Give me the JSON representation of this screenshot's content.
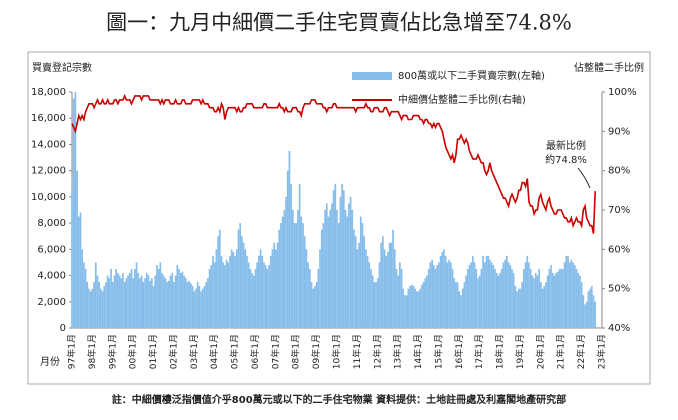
{
  "chart_data": {
    "type": "bar-line",
    "title": "圖一：九月中細價二手住宅買賣佔比急增至74.8%",
    "y_label": "買賣登記宗數",
    "y2_label": "佔整體二手比例",
    "x_label": "月份",
    "annotations": [
      "最新比例",
      "約74.8%"
    ],
    "footnote": "註：中細價樓泛指價值介乎800萬元或以下的二手住宅物業  資料提供：土地註冊處及利嘉閣地產研究部",
    "ylim": [
      0,
      18000
    ],
    "yticks": [
      0,
      {
        "value": 2000,
        "label": "2,000"
      },
      {
        "value": 4000,
        "label": "4,000"
      },
      {
        "value": 6000,
        "label": "6,000"
      },
      {
        "value": 8000,
        "label": "8,000"
      },
      {
        "value": 10000,
        "label": "10,000"
      },
      {
        "value": 12000,
        "label": "12,000"
      },
      {
        "value": 14000,
        "label": "14,000"
      },
      {
        "value": 16000,
        "label": "16,000"
      },
      {
        "value": 18000,
        "label": "18,000"
      }
    ],
    "y2lim": [
      40,
      100
    ],
    "y2ticks": [
      {
        "value": 40,
        "label": "40%"
      },
      {
        "value": 50,
        "label": "50%"
      },
      {
        "value": 60,
        "label": "60%"
      },
      {
        "value": 70,
        "label": "70%"
      },
      {
        "value": 80,
        "label": "80%"
      },
      {
        "value": 90,
        "label": "90%"
      },
      {
        "value": 100,
        "label": "100%"
      }
    ],
    "categories": [
      "97年1月",
      null,
      null,
      null,
      null,
      null,
      null,
      null,
      null,
      null,
      null,
      null,
      "98年1月",
      null,
      null,
      null,
      null,
      null,
      null,
      null,
      null,
      null,
      null,
      null,
      "99年1月",
      null,
      null,
      null,
      null,
      null,
      null,
      null,
      null,
      null,
      null,
      null,
      "00年1月",
      null,
      null,
      null,
      null,
      null,
      null,
      null,
      null,
      null,
      null,
      null,
      "01年1月",
      null,
      null,
      null,
      null,
      null,
      null,
      null,
      null,
      null,
      null,
      null,
      "02年1月",
      null,
      null,
      null,
      null,
      null,
      null,
      null,
      null,
      null,
      null,
      null,
      "03年1月",
      null,
      null,
      null,
      null,
      null,
      null,
      null,
      null,
      null,
      null,
      null,
      "04年1月",
      null,
      null,
      null,
      null,
      null,
      null,
      null,
      null,
      null,
      null,
      null,
      "05年1月",
      null,
      null,
      null,
      null,
      null,
      null,
      null,
      null,
      null,
      null,
      null,
      "06年1月",
      null,
      null,
      null,
      null,
      null,
      null,
      null,
      null,
      null,
      null,
      null,
      "07年1月",
      null,
      null,
      null,
      null,
      null,
      null,
      null,
      null,
      null,
      null,
      null,
      "08年1月",
      null,
      null,
      null,
      null,
      null,
      null,
      null,
      null,
      null,
      null,
      null,
      "09年1月",
      null,
      null,
      null,
      null,
      null,
      null,
      null,
      null,
      null,
      null,
      null,
      "10年1月",
      null,
      null,
      null,
      null,
      null,
      null,
      null,
      null,
      null,
      null,
      null,
      "11年1月",
      null,
      null,
      null,
      null,
      null,
      null,
      null,
      null,
      null,
      null,
      null,
      "12年1月",
      null,
      null,
      null,
      null,
      null,
      null,
      null,
      null,
      null,
      null,
      null,
      "13年1月",
      null,
      null,
      null,
      null,
      null,
      null,
      null,
      null,
      null,
      null,
      null,
      "14年1月",
      null,
      null,
      null,
      null,
      null,
      null,
      null,
      null,
      null,
      null,
      null,
      "15年1月",
      null,
      null,
      null,
      null,
      null,
      null,
      null,
      null,
      null,
      null,
      null,
      "16年1月",
      null,
      null,
      null,
      null,
      null,
      null,
      null,
      null,
      null,
      null,
      null,
      "17年1月",
      null,
      null,
      null,
      null,
      null,
      null,
      null,
      null,
      null,
      null,
      null,
      "18年1月",
      null,
      null,
      null,
      null,
      null,
      null,
      null,
      null,
      null,
      null,
      null,
      "19年1月",
      null,
      null,
      null,
      null,
      null,
      null,
      null,
      null,
      null,
      null,
      null,
      "20年1月",
      null,
      null,
      null,
      null,
      null,
      null,
      null,
      null,
      null,
      null,
      null,
      "21年1月",
      null,
      null,
      null,
      null,
      null,
      null,
      null,
      null,
      null,
      null,
      null,
      "22年1月",
      null,
      null,
      null,
      null,
      null,
      null,
      null,
      null,
      null,
      null,
      null,
      "23年1月"
    ],
    "series": [
      {
        "name": "800萬或以下二手買賣宗數(左軸)",
        "kind": "bar",
        "color": "#86bdea",
        "values": [
          10500,
          17500,
          18000,
          12000,
          8500,
          8800,
          6000,
          5000,
          4500,
          3500,
          3000,
          2800,
          3000,
          3500,
          5000,
          4000,
          3500,
          3000,
          2800,
          3200,
          3500,
          4000,
          3800,
          4500,
          3500,
          4000,
          4500,
          4200,
          4000,
          3800,
          4200,
          3500,
          3800,
          4000,
          4200,
          4500,
          3800,
          4500,
          5000,
          4200,
          3800,
          4000,
          3500,
          3800,
          4200,
          4000,
          3600,
          3800,
          3200,
          4000,
          4800,
          4500,
          5000,
          4200,
          4000,
          3800,
          3500,
          3600,
          4000,
          4200,
          3500,
          4000,
          4800,
          4500,
          4200,
          4300,
          4000,
          3800,
          3500,
          3600,
          3400,
          3200,
          2800,
          3000,
          3500,
          3200,
          2800,
          3000,
          3200,
          3500,
          3800,
          4500,
          4800,
          5500,
          5000,
          6000,
          7000,
          7500,
          5500,
          5000,
          4800,
          5200,
          5000,
          5500,
          6000,
          5800,
          5500,
          6000,
          7500,
          8000,
          7000,
          6500,
          6000,
          5500,
          5000,
          4500,
          4200,
          4000,
          4500,
          5000,
          5500,
          6000,
          5500,
          5000,
          4800,
          4500,
          4800,
          5500,
          6000,
          6500,
          6000,
          6500,
          7500,
          8000,
          8500,
          9000,
          10000,
          12000,
          13500,
          11000,
          9000,
          8000,
          8000,
          9000,
          11000,
          8500,
          8000,
          7000,
          6000,
          5000,
          4500,
          3500,
          3000,
          3200,
          3500,
          4500,
          6000,
          7500,
          8000,
          9000,
          9500,
          8500,
          9000,
          9500,
          10500,
          11000,
          9000,
          8000,
          10000,
          11000,
          10500,
          9000,
          8500,
          9500,
          10000,
          9000,
          7500,
          7000,
          6000,
          6500,
          8500,
          8000,
          7000,
          6000,
          5500,
          5000,
          4500,
          4000,
          3500,
          3500,
          3800,
          5000,
          6500,
          7000,
          6000,
          5500,
          5800,
          6500,
          6500,
          7500,
          6000,
          4500,
          4000,
          5000,
          4500,
          3000,
          2500,
          2500,
          3000,
          3200,
          3300,
          3200,
          3000,
          2800,
          2800,
          3000,
          3300,
          3500,
          3800,
          4000,
          4500,
          5000,
          5200,
          4800,
          4500,
          4800,
          5000,
          5500,
          5800,
          6000,
          5500,
          5000,
          5200,
          5000,
          4500,
          3800,
          3500,
          3500,
          2800,
          2500,
          3000,
          3500,
          4000,
          4500,
          4800,
          5000,
          5500,
          5000,
          4500,
          3800,
          4000,
          4500,
          5500,
          5000,
          5500,
          5500,
          5200,
          5000,
          4800,
          4500,
          4200,
          4000,
          4200,
          4500,
          5000,
          5200,
          5500,
          5000,
          4800,
          4500,
          4200,
          3200,
          2800,
          3000,
          3000,
          3500,
          4500,
          5000,
          5500,
          5000,
          4500,
          4000,
          3800,
          4200,
          4000,
          4500,
          3500,
          3000,
          3200,
          3500,
          4000,
          4500,
          4800,
          4200,
          4000,
          4200,
          4300,
          4500,
          4500,
          4500,
          5000,
          5500,
          5500,
          5000,
          5200,
          5000,
          4800,
          4500,
          4200,
          4000,
          3500,
          2500,
          1800,
          2000,
          2800,
          3000,
          3200,
          2500,
          2000,
          null,
          null,
          null,
          null
        ]
      },
      {
        "name": "中細價佔整體二手比例(右軸)",
        "kind": "line",
        "axis": "y2",
        "color": "#cc0000",
        "values": [
          92,
          91,
          90,
          92,
          94,
          93,
          94,
          93,
          95,
          96,
          97,
          97,
          97,
          96,
          97,
          98,
          97,
          97,
          98,
          97,
          97,
          98,
          97,
          97,
          97,
          98,
          98,
          97,
          98,
          98,
          98,
          99,
          98,
          98,
          98,
          97,
          98,
          99,
          99,
          99,
          99,
          98,
          99,
          99,
          99,
          99,
          98,
          98,
          98,
          98,
          98,
          98,
          97,
          98,
          97,
          98,
          98,
          98,
          97,
          97,
          97,
          98,
          97,
          97,
          97,
          98,
          98,
          97,
          97,
          97,
          97,
          98,
          98,
          98,
          98,
          98,
          97,
          98,
          97,
          97,
          97,
          96,
          96,
          96,
          95,
          95,
          96,
          95,
          97,
          96,
          93,
          95,
          96,
          96,
          96,
          96,
          96,
          95,
          96,
          95,
          95,
          96,
          96,
          97,
          97,
          97,
          97,
          96,
          96,
          96,
          96,
          96,
          96,
          97,
          97,
          96,
          96,
          96,
          96,
          96,
          96,
          96,
          97,
          96,
          96,
          95,
          96,
          95,
          95,
          95,
          96,
          96,
          96,
          95,
          95,
          94,
          96,
          97,
          97,
          97,
          97,
          98,
          98,
          98,
          97,
          97,
          97,
          97,
          96,
          96,
          95,
          96,
          96,
          96,
          97,
          97,
          96,
          96,
          96,
          96,
          96,
          96,
          96,
          96,
          96,
          96,
          96,
          95,
          96,
          96,
          96,
          96,
          96,
          97,
          96,
          96,
          95,
          95,
          96,
          96,
          96,
          95,
          95,
          95,
          96,
          96,
          95,
          94,
          95,
          95,
          95,
          95,
          95,
          94,
          93,
          94,
          94,
          94,
          93,
          93,
          93,
          94,
          94,
          94,
          94,
          93,
          93,
          92,
          93,
          93,
          92,
          92,
          91,
          92,
          91,
          92,
          92,
          91,
          90,
          88,
          86,
          85,
          84,
          83,
          84,
          82,
          84,
          88,
          88,
          89,
          88,
          87,
          88,
          87,
          85,
          84,
          83,
          83,
          83,
          84,
          83,
          82,
          82,
          80,
          79,
          80,
          82,
          80,
          79,
          78,
          77,
          76,
          75,
          74,
          73,
          73,
          72,
          71,
          73,
          74,
          73,
          72,
          73,
          75,
          75,
          77,
          77,
          76,
          78,
          72,
          71,
          71,
          69,
          70,
          70,
          73,
          74,
          72,
          71,
          70,
          72,
          73,
          71,
          70,
          69,
          69,
          70,
          70,
          70,
          69,
          68,
          68,
          67,
          67,
          68,
          66,
          67,
          68,
          67,
          67,
          66,
          70,
          71,
          68,
          67,
          66,
          66,
          64,
          74.8,
          null,
          null,
          null,
          null
        ]
      }
    ]
  }
}
